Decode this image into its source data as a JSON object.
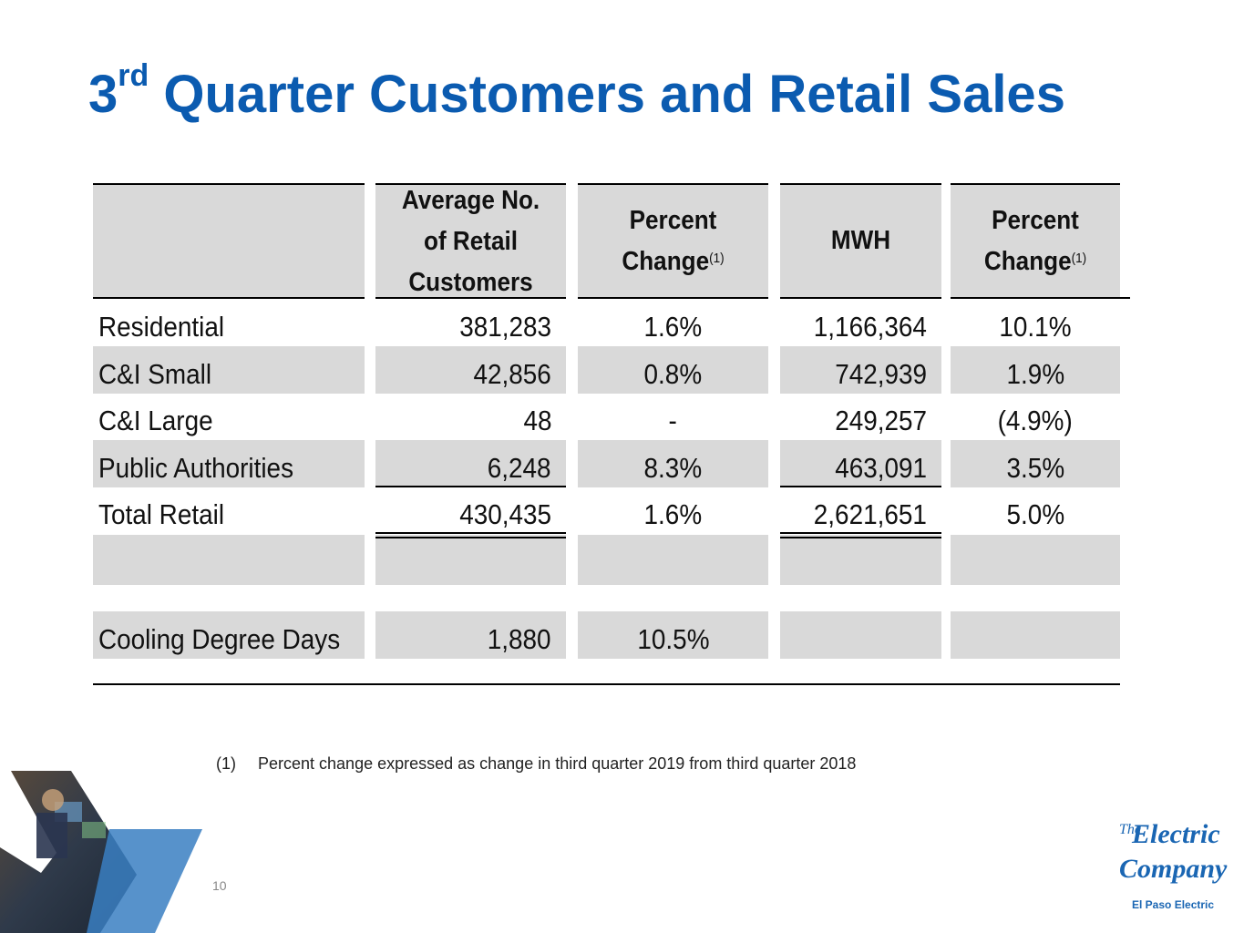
{
  "slide": {
    "title_ordinal": "3",
    "title_suffix": "rd",
    "title_rest": " Quarter Customers and Retail Sales",
    "page_number": "10"
  },
  "table": {
    "headers": {
      "customers": [
        "Average No.",
        "of Retail",
        "Customers"
      ],
      "pct_change_1": {
        "line1": "Percent",
        "line2": "Change",
        "sup": "(1)"
      },
      "mwh": "MWH",
      "pct_change_2": {
        "line1": "Percent",
        "line2": "Change",
        "sup": "(1)"
      }
    },
    "rows": [
      {
        "label": "Residential",
        "customers": "381,283",
        "cust_change": "1.6%",
        "mwh": "1,166,364",
        "mwh_change": "10.1%"
      },
      {
        "label": "C&I Small",
        "customers": "42,856",
        "cust_change": "0.8%",
        "mwh": "742,939",
        "mwh_change": "1.9%"
      },
      {
        "label": "C&I Large",
        "customers": "48",
        "cust_change": "-",
        "mwh": "249,257",
        "mwh_change": "(4.9%)"
      },
      {
        "label": "Public Authorities",
        "customers": "6,248",
        "cust_change": "8.3%",
        "mwh": "463,091",
        "mwh_change": "3.5%"
      },
      {
        "label": "Total Retail",
        "customers": "430,435",
        "cust_change": "1.6%",
        "mwh": "2,621,651",
        "mwh_change": "5.0%"
      }
    ],
    "cooling": {
      "label": "Cooling Degree Days",
      "value": "1,880",
      "change": "10.5%"
    }
  },
  "footnote": {
    "marker": "(1)",
    "text": "Percent change expressed as change in third quarter 2019 from third quarter 2018"
  },
  "logo": {
    "line1": "The",
    "line2": "Electric",
    "line3": "Company",
    "line4": "El Paso Electric"
  },
  "colors": {
    "title": "#0b5bb0",
    "band": "#d9d9d9",
    "logo": "#1a66b3"
  }
}
